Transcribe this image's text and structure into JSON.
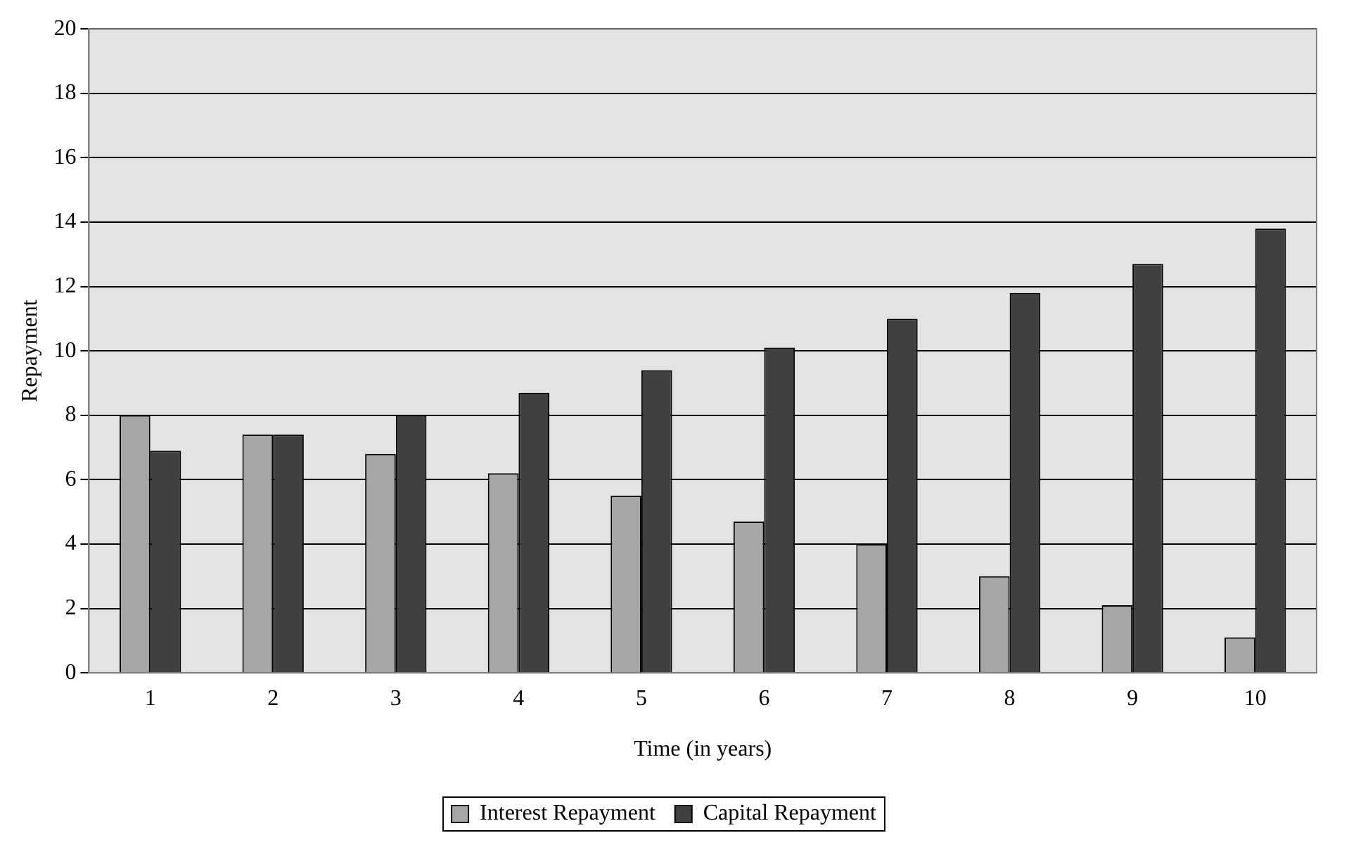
{
  "chart_data": {
    "type": "bar",
    "xlabel": "Time (in years)",
    "ylabel": "Repayment",
    "categories": [
      "1",
      "2",
      "3",
      "4",
      "5",
      "6",
      "7",
      "8",
      "9",
      "10"
    ],
    "series": [
      {
        "name": "Interest Repayment",
        "color": "#a6a6a6",
        "values": [
          8.0,
          7.4,
          6.8,
          6.2,
          5.5,
          4.7,
          4.0,
          3.0,
          2.1,
          1.1
        ]
      },
      {
        "name": "Capital Repayment",
        "color": "#404040",
        "values": [
          6.9,
          7.4,
          8.0,
          8.7,
          9.4,
          10.1,
          11.0,
          11.8,
          12.7,
          13.8
        ]
      }
    ],
    "ylim": [
      0,
      20
    ],
    "yticks": [
      0,
      2,
      4,
      6,
      8,
      10,
      12,
      14,
      16,
      18,
      20
    ],
    "grid": "y",
    "legend": "bottom"
  }
}
